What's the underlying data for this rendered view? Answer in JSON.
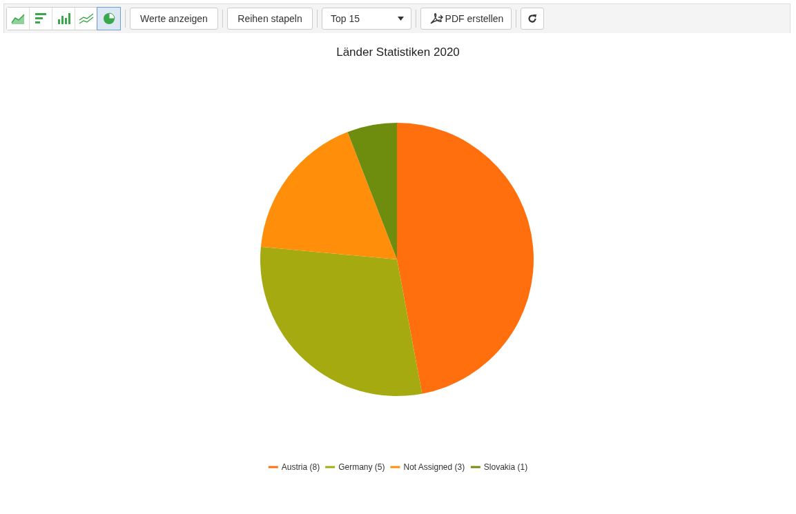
{
  "chart_data": {
    "type": "pie",
    "title": "Länder Statistiken 2020",
    "categories": [
      "Austria (8)",
      "Germany (5)",
      "Not Assigned (3)",
      "Slovakia (1)"
    ],
    "values": [
      8,
      5,
      3,
      1
    ],
    "colors": [
      "#ff6f0e",
      "#a5aa10",
      "#ff8f0a",
      "#6e8c0e"
    ],
    "legend": "bottom",
    "annotations": [
      "Werte anzeigen",
      "Reihen stapeln",
      "Top 15",
      "PDF erstellen"
    ]
  }
}
